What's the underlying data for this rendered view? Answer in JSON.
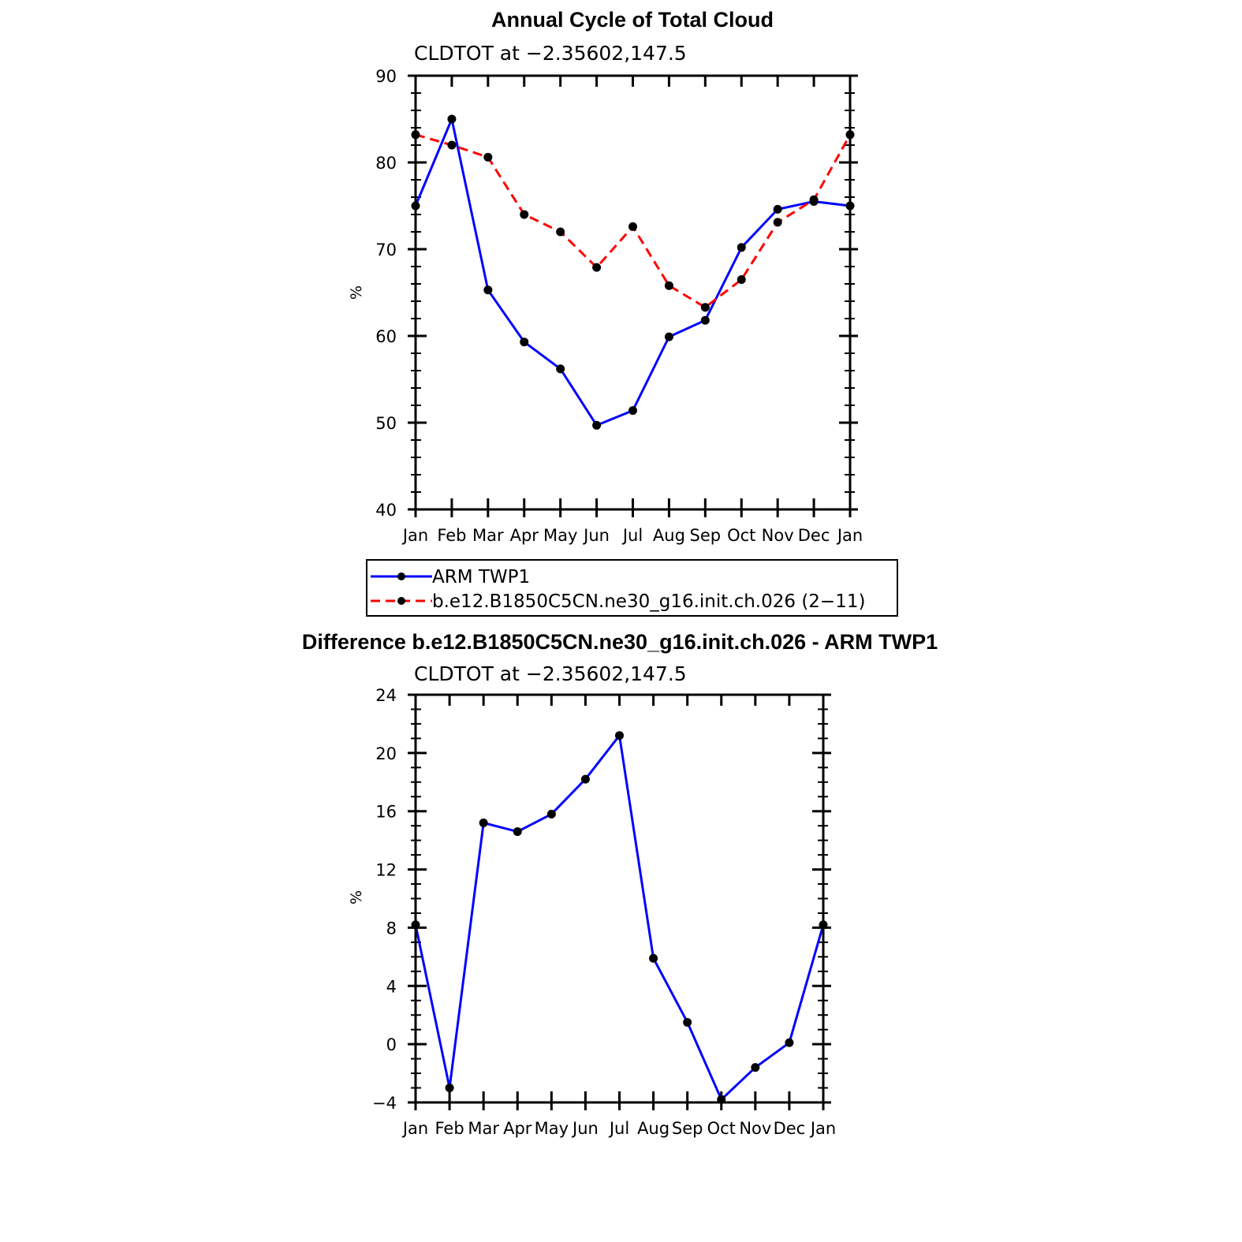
{
  "chart_data": [
    {
      "type": "line",
      "title": "Annual Cycle of Total Cloud",
      "subtitle": "CLDTOT at −2.35602,147.5",
      "ylabel": "%",
      "xlabel": "",
      "ylim": [
        40,
        90
      ],
      "yticks": [
        "40",
        "50",
        "60",
        "70",
        "80",
        "90"
      ],
      "categories": [
        "Jan",
        "Feb",
        "Mar",
        "Apr",
        "May",
        "Jun",
        "Jul",
        "Aug",
        "Sep",
        "Oct",
        "Nov",
        "Dec",
        "Jan"
      ],
      "series": [
        {
          "name": "ARM TWP1",
          "color": "#0000ff",
          "dashed": false,
          "values": [
            75.0,
            85.0,
            65.3,
            59.3,
            56.2,
            49.7,
            51.4,
            59.9,
            61.8,
            70.2,
            74.6,
            75.5,
            75.0
          ]
        },
        {
          "name": "b.e12.B1850C5CN.ne30_g16.init.ch.026 (2−11)",
          "color": "#ff0000",
          "dashed": true,
          "values": [
            83.2,
            82.0,
            80.6,
            74.0,
            72.0,
            67.9,
            72.6,
            65.8,
            63.3,
            66.5,
            73.1,
            75.7,
            83.2
          ]
        }
      ],
      "legend": "bottom"
    },
    {
      "type": "line",
      "title": "Difference b.e12.B1850C5CN.ne30_g16.init.ch.026 - ARM TWP1",
      "subtitle": "CLDTOT at −2.35602,147.5",
      "ylabel": "%",
      "xlabel": "",
      "ylim": [
        -4,
        24
      ],
      "yticks": [
        "−4",
        "0",
        "4",
        "8",
        "12",
        "16",
        "20",
        "24"
      ],
      "categories": [
        "Jan",
        "Feb",
        "Mar",
        "Apr",
        "May",
        "Jun",
        "Jul",
        "Aug",
        "Sep",
        "Oct",
        "Nov",
        "Dec",
        "Jan"
      ],
      "series": [
        {
          "name": "Difference",
          "color": "#0000ff",
          "dashed": false,
          "values": [
            8.2,
            -3.0,
            15.2,
            14.6,
            15.8,
            18.2,
            21.2,
            5.9,
            1.5,
            -3.8,
            -1.6,
            0.1,
            8.2
          ]
        }
      ]
    }
  ]
}
